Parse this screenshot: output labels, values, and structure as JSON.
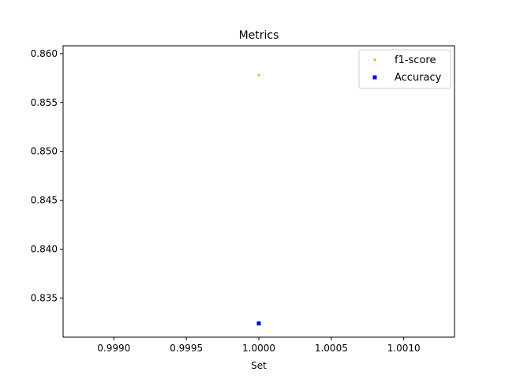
{
  "chart_data": {
    "type": "scatter",
    "title": "Metrics",
    "xlabel": "Set",
    "ylabel": "",
    "xlim": [
      0.99865,
      1.00135
    ],
    "ylim": [
      0.831,
      0.8608
    ],
    "xticks": [
      0.999,
      0.9995,
      1.0,
      1.0005,
      1.001
    ],
    "xtick_labels": [
      "0.9990",
      "0.9995",
      "1.0000",
      "1.0005",
      "1.0010"
    ],
    "yticks": [
      0.835,
      0.84,
      0.845,
      0.85,
      0.855,
      0.86
    ],
    "ytick_labels": [
      "0.835",
      "0.840",
      "0.845",
      "0.850",
      "0.855",
      "0.860"
    ],
    "grid": false,
    "legend_position": "top-right",
    "series": [
      {
        "name": "f1-score",
        "color": "#ffa500",
        "marker": "dot",
        "x": [
          1.0
        ],
        "y": [
          0.8578
        ]
      },
      {
        "name": "Accuracy",
        "color": "#0000ff",
        "marker": "square",
        "x": [
          1.0
        ],
        "y": [
          0.8324
        ]
      }
    ]
  }
}
